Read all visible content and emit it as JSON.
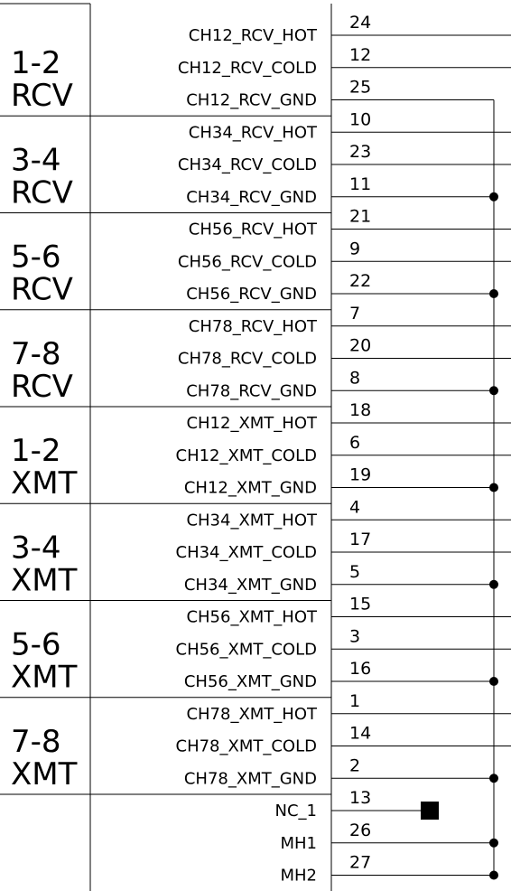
{
  "groups": [
    {
      "title": [
        "1-2",
        "RCV"
      ],
      "pins": [
        {
          "signal": "CH12_RCV_HOT",
          "pin": "24"
        },
        {
          "signal": "CH12_RCV_COLD",
          "pin": "12"
        },
        {
          "signal": "CH12_RCV_GND",
          "pin": "25"
        }
      ]
    },
    {
      "title": [
        "3-4",
        "RCV"
      ],
      "pins": [
        {
          "signal": "CH34_RCV_HOT",
          "pin": "10"
        },
        {
          "signal": "CH34_RCV_COLD",
          "pin": "23"
        },
        {
          "signal": "CH34_RCV_GND",
          "pin": "11"
        }
      ]
    },
    {
      "title": [
        "5-6",
        "RCV"
      ],
      "pins": [
        {
          "signal": "CH56_RCV_HOT",
          "pin": "21"
        },
        {
          "signal": "CH56_RCV_COLD",
          "pin": "9"
        },
        {
          "signal": "CH56_RCV_GND",
          "pin": "22"
        }
      ]
    },
    {
      "title": [
        "7-8",
        "RCV"
      ],
      "pins": [
        {
          "signal": "CH78_RCV_HOT",
          "pin": "7"
        },
        {
          "signal": "CH78_RCV_COLD",
          "pin": "20"
        },
        {
          "signal": "CH78_RCV_GND",
          "pin": "8"
        }
      ]
    },
    {
      "title": [
        "1-2",
        "XMT"
      ],
      "pins": [
        {
          "signal": "CH12_XMT_HOT",
          "pin": "18"
        },
        {
          "signal": "CH12_XMT_COLD",
          "pin": "6"
        },
        {
          "signal": "CH12_XMT_GND",
          "pin": "19"
        }
      ]
    },
    {
      "title": [
        "3-4",
        "XMT"
      ],
      "pins": [
        {
          "signal": "CH34_XMT_HOT",
          "pin": "4"
        },
        {
          "signal": "CH34_XMT_COLD",
          "pin": "17"
        },
        {
          "signal": "CH34_XMT_GND",
          "pin": "5"
        }
      ]
    },
    {
      "title": [
        "5-6",
        "XMT"
      ],
      "pins": [
        {
          "signal": "CH56_XMT_HOT",
          "pin": "15"
        },
        {
          "signal": "CH56_XMT_COLD",
          "pin": "3"
        },
        {
          "signal": "CH56_XMT_GND",
          "pin": "16"
        }
      ]
    },
    {
      "title": [
        "7-8",
        "XMT"
      ],
      "pins": [
        {
          "signal": "CH78_XMT_HOT",
          "pin": "1"
        },
        {
          "signal": "CH78_XMT_COLD",
          "pin": "14"
        },
        {
          "signal": "CH78_XMT_GND",
          "pin": "2"
        }
      ]
    }
  ],
  "extra_pins": [
    {
      "signal": "NC_1",
      "pin": "13"
    },
    {
      "signal": "MH1",
      "pin": "26"
    },
    {
      "signal": "MH2",
      "pin": "27"
    }
  ]
}
